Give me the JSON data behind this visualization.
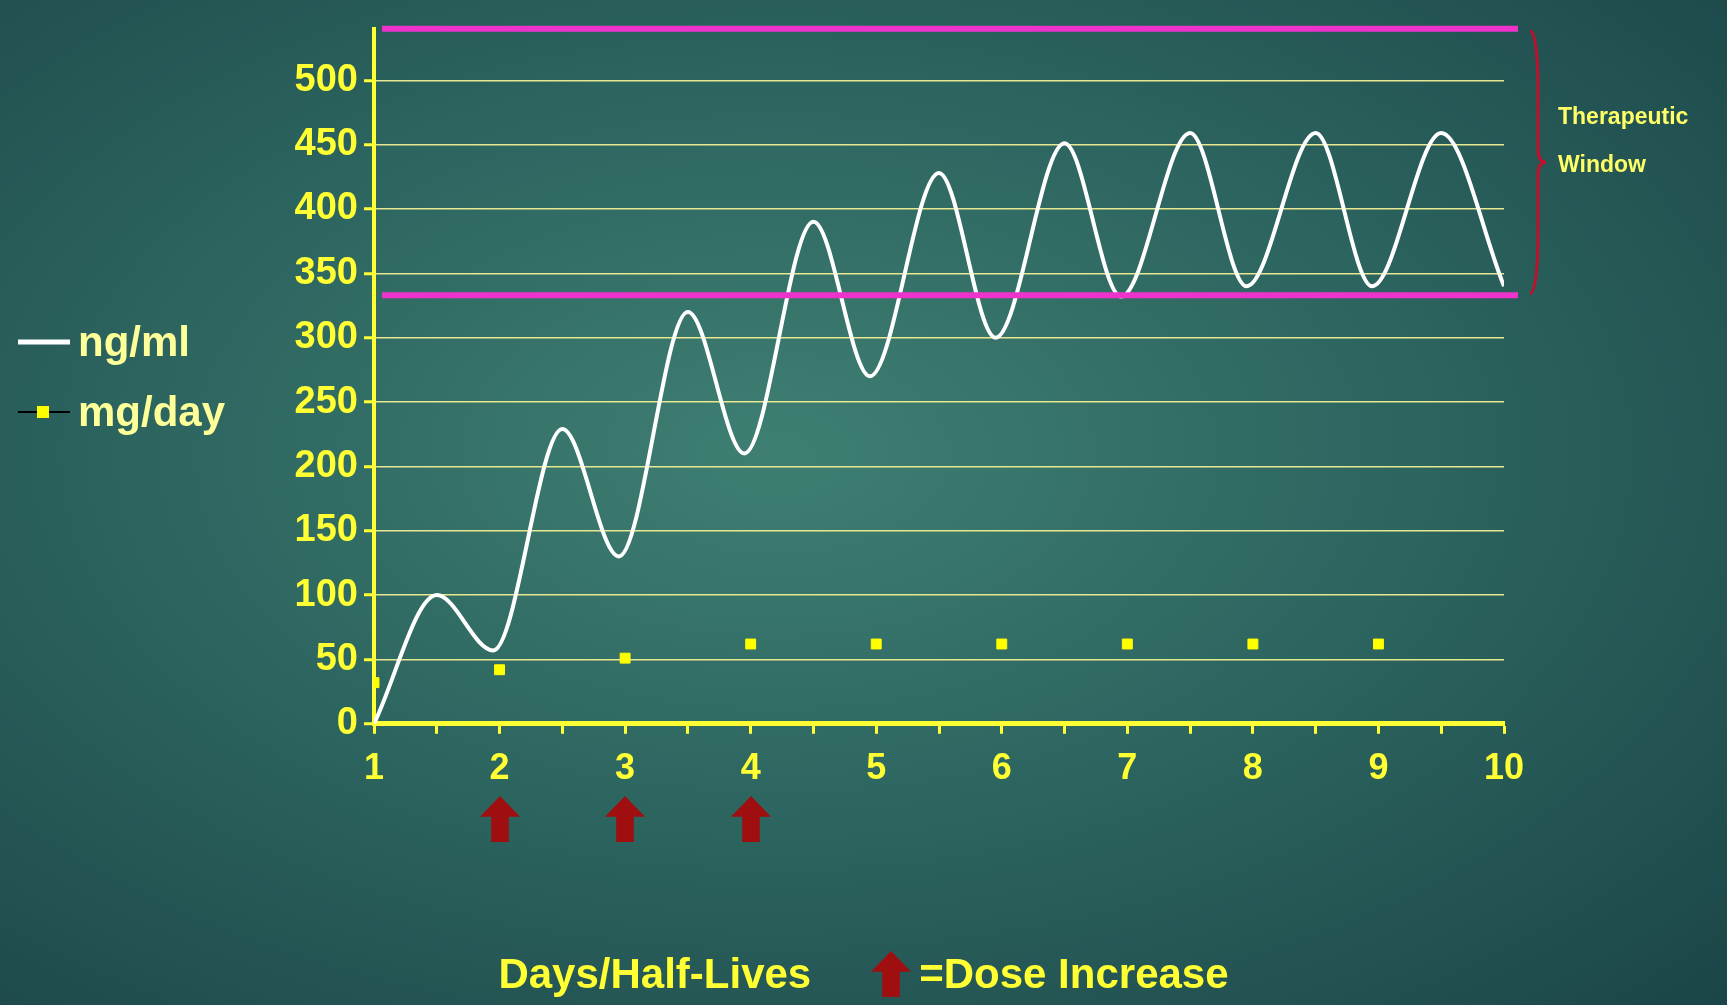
{
  "chart_data": {
    "type": "line",
    "x": [
      1,
      1.5,
      1.95,
      2.5,
      2.95,
      3.5,
      3.95,
      4.5,
      4.95,
      5.5,
      5.95,
      6.5,
      6.95,
      7.5,
      7.95,
      8.5,
      8.95,
      9.5,
      10
    ],
    "series": [
      {
        "name": "ng/ml",
        "color": "#ffffff",
        "marker": "none",
        "values": [
          0,
          100,
          57,
          229,
          130,
          320,
          210,
          390,
          270,
          428,
          300,
          451,
          332,
          459,
          340,
          459,
          340,
          459,
          340
        ]
      },
      {
        "name": "mg/day",
        "type": "scatter",
        "color": "#ffff00",
        "marker": "square",
        "x": [
          1,
          2,
          3,
          4,
          5,
          6,
          7,
          8,
          9
        ],
        "values": [
          32,
          42,
          51,
          62,
          62,
          62,
          62,
          62,
          62
        ]
      }
    ],
    "xlim": [
      1,
      10
    ],
    "xticks": [
      1,
      {
        "value": 1.5,
        "label": null
      },
      2,
      {
        "value": 2.5,
        "label": null
      },
      3,
      {
        "value": 3.5,
        "label": null
      },
      4,
      {
        "value": 4.5,
        "label": null
      },
      5,
      {
        "value": 5.5,
        "label": null
      },
      6,
      {
        "value": 6.5,
        "label": null
      },
      7,
      {
        "value": 7.5,
        "label": null
      },
      8,
      {
        "value": 8.5,
        "label": null
      },
      9,
      {
        "value": 9.5,
        "label": null
      },
      10
    ],
    "ylim": [
      0,
      540
    ],
    "yticks": [
      0,
      50,
      100,
      150,
      200,
      250,
      300,
      350,
      400,
      450,
      500
    ],
    "xlabel": "Days/Half-Lives",
    "grid": "y",
    "legend": "left",
    "ref_lines": [
      {
        "axis": "y",
        "value": 540,
        "color": "#ee33cc"
      },
      {
        "axis": "y",
        "value": 333,
        "color": "#ee33cc"
      }
    ],
    "annotations": [
      "Therapeutic Window",
      "=Dose Increase"
    ]
  }
}
